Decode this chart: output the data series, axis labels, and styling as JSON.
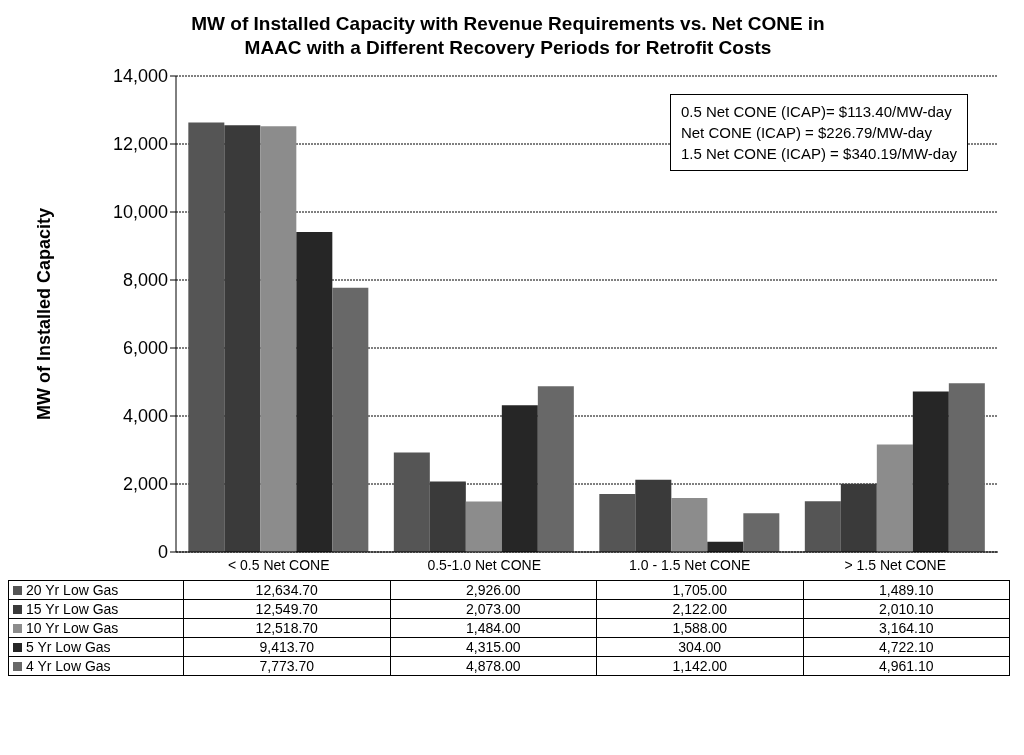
{
  "chart_data": {
    "type": "bar",
    "title": "MW of Installed Capacity with Revenue Requirements vs. Net CONE in MAAC with a Different Recovery Periods for Retrofit Costs",
    "ylabel": "MW of Installed Capacity",
    "categories": [
      "< 0.5 Net CONE",
      "0.5-1.0 Net CONE",
      "1.0 - 1.5 Net CONE",
      "> 1.5 Net CONE"
    ],
    "series": [
      {
        "name": "20 Yr Low Gas",
        "color": "#555555",
        "values": [
          12634.7,
          2926,
          1705,
          1489.1
        ],
        "value_labels": [
          "12,634.70",
          "2,926.00",
          "1,705.00",
          "1,489.10"
        ]
      },
      {
        "name": "15 Yr Low Gas",
        "color": "#3a3a3a",
        "values": [
          12549.7,
          2073,
          2122,
          2010.1
        ],
        "value_labels": [
          "12,549.70",
          "2,073.00",
          "2,122.00",
          "2,010.10"
        ]
      },
      {
        "name": "10 Yr Low Gas",
        "color": "#8c8c8c",
        "values": [
          12518.7,
          1484,
          1588,
          3164.1
        ],
        "value_labels": [
          "12,518.70",
          "1,484.00",
          "1,588.00",
          "3,164.10"
        ]
      },
      {
        "name": "5 Yr Low Gas",
        "color": "#262626",
        "values": [
          9413.7,
          4315,
          304,
          4722.1
        ],
        "value_labels": [
          "9,413.70",
          "4,315.00",
          "304.00",
          "4,722.10"
        ]
      },
      {
        "name": "4 Yr Low Gas",
        "color": "#686868",
        "values": [
          7773.7,
          4878,
          1142,
          4961.1
        ],
        "value_labels": [
          "7,773.70",
          "4,878.00",
          "1,142.00",
          "4,961.10"
        ]
      }
    ],
    "ylim": [
      0,
      14000
    ],
    "yticks": [
      0,
      {
        "value": 2000,
        "label": "2,000"
      },
      {
        "value": 4000,
        "label": "4,000"
      },
      {
        "value": 6000,
        "label": "6,000"
      },
      {
        "value": 8000,
        "label": "8,000"
      },
      {
        "value": 10000,
        "label": "10,000"
      },
      {
        "value": 12000,
        "label": "12,000"
      },
      {
        "value": 14000,
        "label": "14,000"
      }
    ],
    "grid": "y",
    "legend": "bottom",
    "annotations": [
      "0.5 Net CONE (ICAP)= $113.40/MW-day",
      "Net CONE (ICAP) = $226.79/MW-day",
      "1.5 Net CONE (ICAP) = $340.19/MW-day"
    ]
  }
}
